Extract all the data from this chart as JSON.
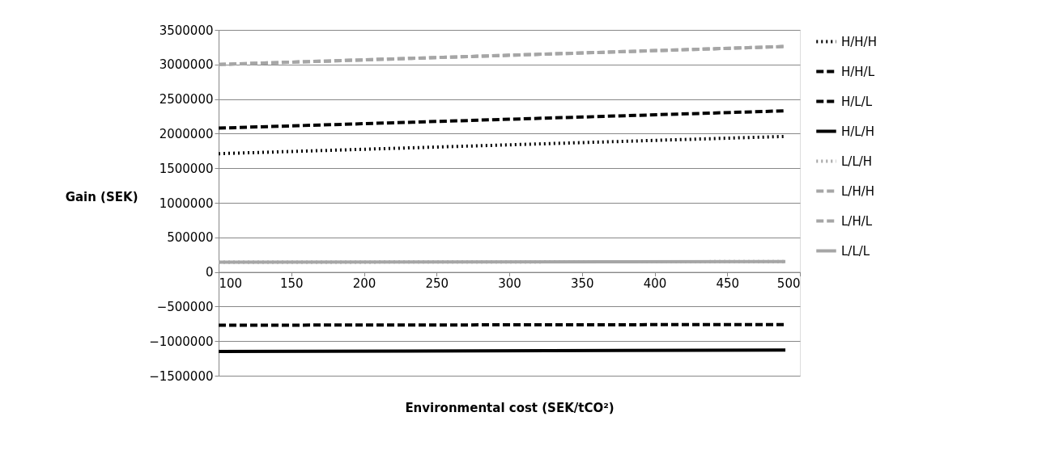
{
  "chart_data": {
    "type": "line",
    "xlabel": "Environmental cost (SEK/tCO²)",
    "ylabel": "Gain (SEK)",
    "x": [
      100,
      490
    ],
    "xlim": [
      100,
      500
    ],
    "xticks": [
      100,
      150,
      200,
      250,
      300,
      350,
      400,
      450,
      500
    ],
    "ylim": [
      -1500000,
      3500000
    ],
    "yticks": [
      -1500000,
      -1000000,
      -500000,
      0,
      500000,
      1000000,
      1500000,
      2000000,
      2500000,
      3000000,
      3500000
    ],
    "grid": "y",
    "legend": "right",
    "marker": "none",
    "series": [
      {
        "name": "H/H/H",
        "color": "#000000",
        "line_style": "dotted",
        "values": [
          1710000,
          1960000
        ]
      },
      {
        "name": "H/H/L",
        "color": "#000000",
        "line_style": "dashed",
        "values": [
          2080000,
          2330000
        ]
      },
      {
        "name": "H/L/L",
        "color": "#000000",
        "line_style": "dashed",
        "values": [
          -770000,
          -760000
        ]
      },
      {
        "name": "H/L/H",
        "color": "#000000",
        "line_style": "solid",
        "values": [
          -1150000,
          -1130000
        ]
      },
      {
        "name": "L/L/H",
        "color": "#a6a6a6",
        "line_style": "dotted",
        "values": [
          140000,
          150000
        ]
      },
      {
        "name": "L/H/H",
        "color": "#a6a6a6",
        "line_style": "dashed",
        "values": [
          3000000,
          3260000
        ]
      },
      {
        "name": "L/H/L",
        "color": "#a6a6a6",
        "line_style": "dashed",
        "values": [
          3000000,
          3260000
        ]
      },
      {
        "name": "L/L/L",
        "color": "#a6a6a6",
        "line_style": "solid",
        "values": [
          140000,
          150000
        ]
      }
    ]
  }
}
